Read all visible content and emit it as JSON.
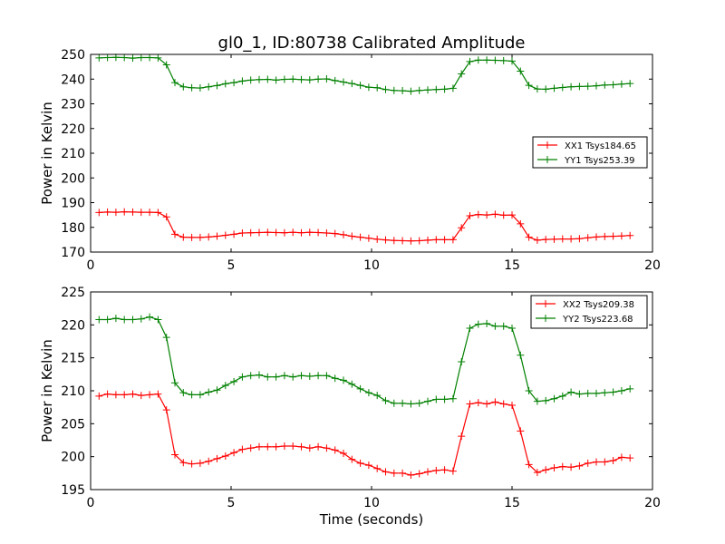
{
  "figure": {
    "title": "gl0_1, ID:80738 Calibrated Amplitude"
  },
  "chart_data": [
    {
      "type": "line",
      "title": "gl0_1, ID:80738 Calibrated Amplitude",
      "xlabel": "",
      "ylabel": "Power in Kelvin",
      "xlim": [
        0,
        20
      ],
      "ylim": [
        170,
        250
      ],
      "xticks": [
        "0",
        "5",
        "10",
        "15",
        "20"
      ],
      "yticks": [
        "170",
        "180",
        "190",
        "200",
        "210",
        "220",
        "230",
        "240",
        "250"
      ],
      "legend_position": "center-right",
      "grid": false,
      "x": [
        0.3,
        0.6,
        0.9,
        1.2,
        1.5,
        1.8,
        2.1,
        2.4,
        2.7,
        3.0,
        3.3,
        3.6,
        3.9,
        4.2,
        4.5,
        4.8,
        5.1,
        5.4,
        5.7,
        6.0,
        6.3,
        6.6,
        6.9,
        7.2,
        7.5,
        7.8,
        8.1,
        8.4,
        8.7,
        9.0,
        9.3,
        9.6,
        9.9,
        10.2,
        10.5,
        10.8,
        11.1,
        11.4,
        11.7,
        12.0,
        12.3,
        12.6,
        12.9,
        13.2,
        13.5,
        13.8,
        14.1,
        14.4,
        14.7,
        15.0,
        15.3,
        15.6,
        15.9,
        16.2,
        16.5,
        16.8,
        17.1,
        17.4,
        17.7,
        18.0,
        18.3,
        18.6,
        18.9,
        19.2
      ],
      "series": [
        {
          "name": "XX1 Tsys184.65",
          "color": "#ff0000",
          "values": [
            186,
            186.2,
            186.1,
            186.3,
            186.2,
            186.1,
            186.1,
            186,
            184.2,
            177.2,
            176,
            175.9,
            175.9,
            176.1,
            176.4,
            176.8,
            177.2,
            177.7,
            177.8,
            177.9,
            178,
            177.9,
            177.8,
            178,
            177.8,
            178,
            177.9,
            177.7,
            177.5,
            177,
            176.4,
            176,
            175.6,
            175.2,
            174.9,
            174.7,
            174.6,
            174.5,
            174.6,
            174.8,
            175,
            175,
            175,
            179.8,
            184.7,
            185.2,
            185,
            185.3,
            184.9,
            185,
            181.4,
            176,
            174.8,
            175.1,
            175.2,
            175.3,
            175.3,
            175.4,
            175.8,
            176.1,
            176.3,
            176.4,
            176.5,
            176.7
          ]
        },
        {
          "name": "YY1 Tsys253.39",
          "color": "#008000",
          "values": [
            248.6,
            248.7,
            248.8,
            248.7,
            248.5,
            248.7,
            248.7,
            248.6,
            245.8,
            238.6,
            236.9,
            236.5,
            236.4,
            236.9,
            237.4,
            238.1,
            238.6,
            239.2,
            239.6,
            239.8,
            239.9,
            239.6,
            239.9,
            240,
            239.8,
            239.7,
            240,
            240.1,
            239.4,
            238.8,
            238.2,
            237.5,
            236.7,
            236.5,
            235.8,
            235.4,
            235.3,
            235.1,
            235.4,
            235.6,
            235.8,
            235.9,
            236.3,
            242.1,
            247.1,
            247.7,
            247.7,
            247.6,
            247.5,
            247.3,
            243.2,
            237.5,
            236,
            235.9,
            236.3,
            236.6,
            236.9,
            237,
            237.1,
            237.3,
            237.6,
            237.7,
            238,
            238.2
          ]
        }
      ]
    },
    {
      "type": "line",
      "title": "",
      "xlabel": "Time (seconds)",
      "ylabel": "Power in Kelvin",
      "xlim": [
        0,
        20
      ],
      "ylim": [
        195,
        225
      ],
      "xticks": [
        "0",
        "5",
        "10",
        "15",
        "20"
      ],
      "yticks": [
        "195",
        "200",
        "205",
        "210",
        "215",
        "220",
        "225"
      ],
      "legend_position": "top-right",
      "grid": false,
      "x": [
        0.3,
        0.6,
        0.9,
        1.2,
        1.5,
        1.8,
        2.1,
        2.4,
        2.7,
        3.0,
        3.3,
        3.6,
        3.9,
        4.2,
        4.5,
        4.8,
        5.1,
        5.4,
        5.7,
        6.0,
        6.3,
        6.6,
        6.9,
        7.2,
        7.5,
        7.8,
        8.1,
        8.4,
        8.7,
        9.0,
        9.3,
        9.6,
        9.9,
        10.2,
        10.5,
        10.8,
        11.1,
        11.4,
        11.7,
        12.0,
        12.3,
        12.6,
        12.9,
        13.2,
        13.5,
        13.8,
        14.1,
        14.4,
        14.7,
        15.0,
        15.3,
        15.6,
        15.9,
        16.2,
        16.5,
        16.8,
        17.1,
        17.4,
        17.7,
        18.0,
        18.3,
        18.6,
        18.9,
        19.2
      ],
      "series": [
        {
          "name": "XX2 Tsys209.38",
          "color": "#ff0000",
          "values": [
            209.2,
            209.5,
            209.4,
            209.4,
            209.5,
            209.3,
            209.4,
            209.5,
            207.1,
            200.3,
            199.1,
            198.9,
            199,
            199.3,
            199.7,
            200.1,
            200.6,
            201.1,
            201.3,
            201.5,
            201.5,
            201.5,
            201.6,
            201.6,
            201.5,
            201.3,
            201.5,
            201.3,
            201,
            200.5,
            199.6,
            199,
            198.7,
            198.2,
            197.7,
            197.5,
            197.5,
            197.2,
            197.4,
            197.7,
            197.9,
            198,
            197.8,
            203.1,
            208,
            208.2,
            208,
            208.3,
            208,
            207.8,
            203.9,
            198.8,
            197.6,
            198,
            198.3,
            198.5,
            198.4,
            198.6,
            199,
            199.2,
            199.2,
            199.4,
            199.9,
            199.8
          ]
        },
        {
          "name": "YY2 Tsys223.68",
          "color": "#008000",
          "values": [
            220.8,
            220.8,
            221,
            220.8,
            220.8,
            220.9,
            221.2,
            220.8,
            218.1,
            211.2,
            209.7,
            209.4,
            209.4,
            209.8,
            210.1,
            210.8,
            211.4,
            212.1,
            212.3,
            212.4,
            212.1,
            212.1,
            212.3,
            212.1,
            212.3,
            212.2,
            212.3,
            212.3,
            211.9,
            211.6,
            211,
            210.3,
            209.7,
            209.3,
            208.5,
            208.1,
            208.1,
            208,
            208.1,
            208.4,
            208.7,
            208.7,
            208.8,
            214.4,
            219.5,
            220.1,
            220.2,
            219.8,
            219.8,
            219.5,
            215.4,
            210,
            208.4,
            208.5,
            208.8,
            209.2,
            209.8,
            209.5,
            209.6,
            209.6,
            209.7,
            209.8,
            210,
            210.3
          ]
        }
      ]
    }
  ]
}
